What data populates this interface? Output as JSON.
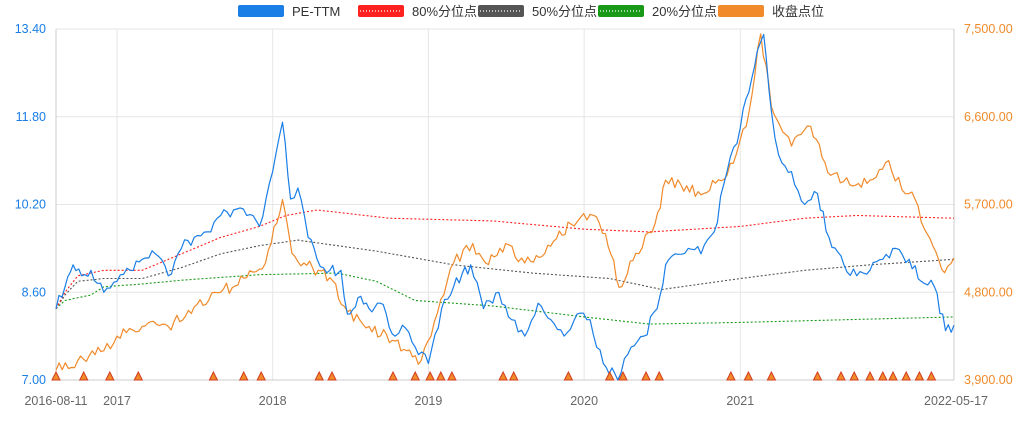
{
  "chart_data": {
    "type": "line",
    "title": "",
    "legend": {
      "placement": "top-center",
      "items": [
        {
          "label": "PE-TTM",
          "color": "#1a7ee6",
          "style": "solid"
        },
        {
          "label": "80%分位点",
          "color": "#ff2020",
          "style": "dotted"
        },
        {
          "label": "50%分位点",
          "color": "#555555",
          "style": "dotted"
        },
        {
          "label": "20%分位点",
          "color": "#189a18",
          "style": "dotted"
        },
        {
          "label": "收盘点位",
          "color": "#f08a2a",
          "style": "solid"
        }
      ]
    },
    "x_axis": {
      "range": [
        "2016-08-11",
        "2022-05-17"
      ],
      "tick_labels": [
        {
          "label": "2016-08-11",
          "date": "2016-08-11"
        },
        {
          "label": "2017",
          "date": "2017-01-01"
        },
        {
          "label": "2018",
          "date": "2018-01-01"
        },
        {
          "label": "2019",
          "date": "2019-01-01"
        },
        {
          "label": "2020",
          "date": "2020-01-01"
        },
        {
          "label": "2021",
          "date": "2021-01-01"
        },
        {
          "label": "2022-05-17",
          "date": "2022-05-17"
        }
      ]
    },
    "y_left": {
      "range": [
        7.0,
        13.4
      ],
      "ticks": [
        "7.00",
        "8.60",
        "10.20",
        "11.80",
        "13.40"
      ],
      "color": "#1a7ee6"
    },
    "y_right": {
      "range": [
        3900,
        7500
      ],
      "ticks": [
        "3,900.00",
        "4,800.00",
        "5,700.00",
        "6,600.00",
        "7,500.00"
      ],
      "color": "#f08a2a"
    },
    "grid": true,
    "series": [
      {
        "name": "PE-TTM",
        "axis": "left",
        "color": "#1a7ee6",
        "points": [
          [
            "2016-08-11",
            8.3
          ],
          [
            "2016-09-01",
            8.7
          ],
          [
            "2016-09-20",
            9.1
          ],
          [
            "2016-10-10",
            8.9
          ],
          [
            "2016-11-01",
            9.0
          ],
          [
            "2016-12-01",
            8.6
          ],
          [
            "2017-01-01",
            8.8
          ],
          [
            "2017-02-01",
            9.0
          ],
          [
            "2017-03-01",
            9.2
          ],
          [
            "2017-04-01",
            9.3
          ],
          [
            "2017-05-01",
            8.9
          ],
          [
            "2017-06-01",
            9.4
          ],
          [
            "2017-07-01",
            9.6
          ],
          [
            "2017-08-01",
            9.7
          ],
          [
            "2017-09-01",
            10.0
          ],
          [
            "2017-10-01",
            10.1
          ],
          [
            "2017-11-01",
            10.0
          ],
          [
            "2017-12-01",
            9.8
          ],
          [
            "2018-01-01",
            10.8
          ],
          [
            "2018-01-24",
            11.7
          ],
          [
            "2018-02-12",
            10.3
          ],
          [
            "2018-03-01",
            10.5
          ],
          [
            "2018-03-25",
            9.6
          ],
          [
            "2018-04-15",
            9.2
          ],
          [
            "2018-05-15",
            9.0
          ],
          [
            "2018-06-10",
            9.0
          ],
          [
            "2018-06-25",
            8.2
          ],
          [
            "2018-07-20",
            8.5
          ],
          [
            "2018-08-15",
            8.3
          ],
          [
            "2018-09-10",
            8.4
          ],
          [
            "2018-10-15",
            7.8
          ],
          [
            "2018-11-01",
            8.0
          ],
          [
            "2018-12-01",
            7.6
          ],
          [
            "2019-01-01",
            7.3
          ],
          [
            "2019-02-01",
            8.3
          ],
          [
            "2019-03-01",
            8.7
          ],
          [
            "2019-04-10",
            9.1
          ],
          [
            "2019-05-10",
            8.3
          ],
          [
            "2019-06-15",
            8.6
          ],
          [
            "2019-07-15",
            8.1
          ],
          [
            "2019-08-15",
            7.8
          ],
          [
            "2019-09-15",
            8.4
          ],
          [
            "2019-10-15",
            8.1
          ],
          [
            "2019-11-15",
            7.8
          ],
          [
            "2019-12-15",
            8.2
          ],
          [
            "2020-01-15",
            8.1
          ],
          [
            "2020-02-15",
            7.3
          ],
          [
            "2020-03-20",
            7.0
          ],
          [
            "2020-04-20",
            7.6
          ],
          [
            "2020-05-20",
            7.8
          ],
          [
            "2020-06-20",
            8.3
          ],
          [
            "2020-07-10",
            9.1
          ],
          [
            "2020-08-01",
            9.3
          ],
          [
            "2020-09-01",
            9.4
          ],
          [
            "2020-10-01",
            9.3
          ],
          [
            "2020-11-01",
            9.7
          ],
          [
            "2020-12-01",
            10.8
          ],
          [
            "2021-01-01",
            11.6
          ],
          [
            "2021-02-10",
            13.0
          ],
          [
            "2021-02-25",
            13.3
          ],
          [
            "2021-03-15",
            11.9
          ],
          [
            "2021-04-01",
            11.1
          ],
          [
            "2021-05-01",
            10.8
          ],
          [
            "2021-06-01",
            10.2
          ],
          [
            "2021-07-01",
            10.4
          ],
          [
            "2021-07-28",
            9.6
          ],
          [
            "2021-09-01",
            9.1
          ],
          [
            "2021-10-01",
            8.9
          ],
          [
            "2021-11-01",
            9.0
          ],
          [
            "2021-12-01",
            9.2
          ],
          [
            "2022-01-01",
            9.4
          ],
          [
            "2022-02-01",
            9.2
          ],
          [
            "2022-03-01",
            8.8
          ],
          [
            "2022-04-01",
            8.7
          ],
          [
            "2022-04-27",
            7.9
          ],
          [
            "2022-05-17",
            8.0
          ]
        ]
      },
      {
        "name": "80%分位点",
        "axis": "left",
        "color": "#ff2020",
        "points": [
          [
            "2016-08-11",
            8.3
          ],
          [
            "2016-09-01",
            8.6
          ],
          [
            "2016-10-01",
            8.9
          ],
          [
            "2016-12-01",
            9.0
          ],
          [
            "2017-03-01",
            9.0
          ],
          [
            "2017-06-01",
            9.3
          ],
          [
            "2017-09-01",
            9.6
          ],
          [
            "2017-12-01",
            9.8
          ],
          [
            "2018-02-01",
            10.0
          ],
          [
            "2018-04-15",
            10.1
          ],
          [
            "2018-10-01",
            9.95
          ],
          [
            "2019-06-01",
            9.9
          ],
          [
            "2020-01-01",
            9.75
          ],
          [
            "2020-06-01",
            9.7
          ],
          [
            "2021-01-01",
            9.8
          ],
          [
            "2021-06-01",
            9.95
          ],
          [
            "2021-10-01",
            10.0
          ],
          [
            "2022-05-17",
            9.95
          ]
        ]
      },
      {
        "name": "50%分位点",
        "axis": "left",
        "color": "#555555",
        "points": [
          [
            "2016-08-11",
            8.3
          ],
          [
            "2016-09-01",
            8.55
          ],
          [
            "2016-10-01",
            8.8
          ],
          [
            "2016-12-01",
            8.85
          ],
          [
            "2017-03-01",
            8.85
          ],
          [
            "2017-06-01",
            9.05
          ],
          [
            "2017-09-01",
            9.3
          ],
          [
            "2017-12-01",
            9.45
          ],
          [
            "2018-03-01",
            9.55
          ],
          [
            "2018-09-01",
            9.35
          ],
          [
            "2019-03-01",
            9.1
          ],
          [
            "2019-09-01",
            8.95
          ],
          [
            "2020-03-01",
            8.85
          ],
          [
            "2020-07-01",
            8.65
          ],
          [
            "2021-01-01",
            8.85
          ],
          [
            "2021-06-01",
            9.0
          ],
          [
            "2021-11-01",
            9.1
          ],
          [
            "2022-05-17",
            9.2
          ]
        ]
      },
      {
        "name": "20%分位点",
        "axis": "left",
        "color": "#189a18",
        "points": [
          [
            "2016-08-11",
            8.3
          ],
          [
            "2016-09-01",
            8.45
          ],
          [
            "2016-11-01",
            8.55
          ],
          [
            "2016-12-01",
            8.7
          ],
          [
            "2017-03-01",
            8.75
          ],
          [
            "2017-06-01",
            8.82
          ],
          [
            "2017-12-01",
            8.92
          ],
          [
            "2018-06-01",
            8.95
          ],
          [
            "2018-09-01",
            8.8
          ],
          [
            "2018-12-01",
            8.45
          ],
          [
            "2019-06-01",
            8.35
          ],
          [
            "2020-01-01",
            8.15
          ],
          [
            "2020-06-01",
            8.02
          ],
          [
            "2021-01-01",
            8.05
          ],
          [
            "2022-05-17",
            8.15
          ]
        ]
      },
      {
        "name": "收盘点位",
        "axis": "right",
        "color": "#f08a2a",
        "points": [
          [
            "2016-08-11",
            4000
          ],
          [
            "2016-10-01",
            4100
          ],
          [
            "2016-12-01",
            4200
          ],
          [
            "2017-01-01",
            4350
          ],
          [
            "2017-03-01",
            4450
          ],
          [
            "2017-05-01",
            4450
          ],
          [
            "2017-07-01",
            4650
          ],
          [
            "2017-09-01",
            4800
          ],
          [
            "2017-11-01",
            4950
          ],
          [
            "2017-12-15",
            5100
          ],
          [
            "2018-01-24",
            5750
          ],
          [
            "2018-02-15",
            5200
          ],
          [
            "2018-03-15",
            5100
          ],
          [
            "2018-05-15",
            4950
          ],
          [
            "2018-06-25",
            4600
          ],
          [
            "2018-08-15",
            4450
          ],
          [
            "2018-10-15",
            4300
          ],
          [
            "2018-12-15",
            4100
          ],
          [
            "2019-01-15",
            4500
          ],
          [
            "2019-03-01",
            5100
          ],
          [
            "2019-04-15",
            5300
          ],
          [
            "2019-05-15",
            5100
          ],
          [
            "2019-07-01",
            5300
          ],
          [
            "2019-08-15",
            5100
          ],
          [
            "2019-10-01",
            5200
          ],
          [
            "2019-12-01",
            5500
          ],
          [
            "2020-01-15",
            5600
          ],
          [
            "2020-02-20",
            5400
          ],
          [
            "2020-03-23",
            4850
          ],
          [
            "2020-05-01",
            5200
          ],
          [
            "2020-06-15",
            5500
          ],
          [
            "2020-07-10",
            5950
          ],
          [
            "2020-08-15",
            5900
          ],
          [
            "2020-10-01",
            5800
          ],
          [
            "2020-12-01",
            6000
          ],
          [
            "2021-01-15",
            6500
          ],
          [
            "2021-02-18",
            7450
          ],
          [
            "2021-03-15",
            6700
          ],
          [
            "2021-05-01",
            6300
          ],
          [
            "2021-06-15",
            6500
          ],
          [
            "2021-08-01",
            6000
          ],
          [
            "2021-09-15",
            5900
          ],
          [
            "2021-11-01",
            5950
          ],
          [
            "2021-12-15",
            6150
          ],
          [
            "2022-01-15",
            5850
          ],
          [
            "2022-02-15",
            5750
          ],
          [
            "2022-03-15",
            5400
          ],
          [
            "2022-04-25",
            5000
          ],
          [
            "2022-05-17",
            5150
          ]
        ]
      }
    ],
    "event_markers": {
      "shape": "triangle",
      "fill": "#f08a2a",
      "stroke": "#d23c1c",
      "position": "bottom",
      "dates": [
        "2016-08-11",
        "2016-10-15",
        "2016-12-15",
        "2017-02-20",
        "2017-08-15",
        "2017-10-25",
        "2017-12-05",
        "2018-04-20",
        "2018-05-20",
        "2018-10-10",
        "2018-12-01",
        "2019-01-05",
        "2019-01-30",
        "2019-02-25",
        "2019-06-25",
        "2019-07-20",
        "2019-11-25",
        "2020-03-01",
        "2020-04-01",
        "2020-05-25",
        "2020-06-25",
        "2020-12-10",
        "2021-01-20",
        "2021-03-15",
        "2021-07-01",
        "2021-08-25",
        "2021-09-25",
        "2021-11-01",
        "2021-12-01",
        "2021-12-25",
        "2022-01-25",
        "2022-02-25",
        "2022-03-25"
      ]
    }
  }
}
